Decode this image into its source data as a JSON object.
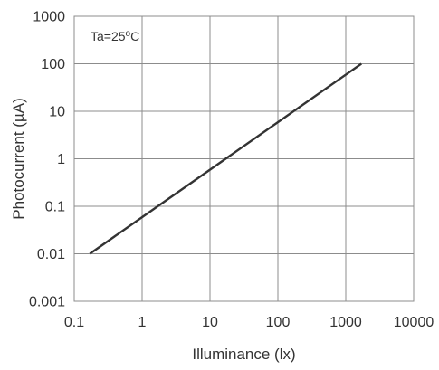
{
  "chart_data": {
    "type": "line",
    "xscale": "log",
    "yscale": "log",
    "xlim": [
      0.1,
      10000
    ],
    "ylim": [
      0.001,
      1000
    ],
    "grid": true,
    "xlabel": "Illuminance  (lx)",
    "ylabel": "Photocurrent  (µA)",
    "xticks": [
      {
        "value": 0.1,
        "label": "0.1"
      },
      {
        "value": 1,
        "label": "1"
      },
      {
        "value": 10,
        "label": "10"
      },
      {
        "value": 100,
        "label": "100"
      },
      {
        "value": 1000,
        "label": "1000"
      },
      {
        "value": 10000,
        "label": "10000"
      }
    ],
    "yticks": [
      {
        "value": 0.001,
        "label": "0.001"
      },
      {
        "value": 0.01,
        "label": "0.01"
      },
      {
        "value": 0.1,
        "label": "0.1"
      },
      {
        "value": 1,
        "label": "1"
      },
      {
        "value": 10,
        "label": "10"
      },
      {
        "value": 100,
        "label": "100"
      },
      {
        "value": 1000,
        "label": "1000"
      }
    ],
    "annotation": {
      "prefix": "Ta=25",
      "degree": "o",
      "suffix": "C"
    },
    "series": [
      {
        "color": "#333333",
        "points": [
          {
            "x": 0.17,
            "y": 0.01
          },
          {
            "x": 1700,
            "y": 100
          }
        ]
      }
    ]
  }
}
